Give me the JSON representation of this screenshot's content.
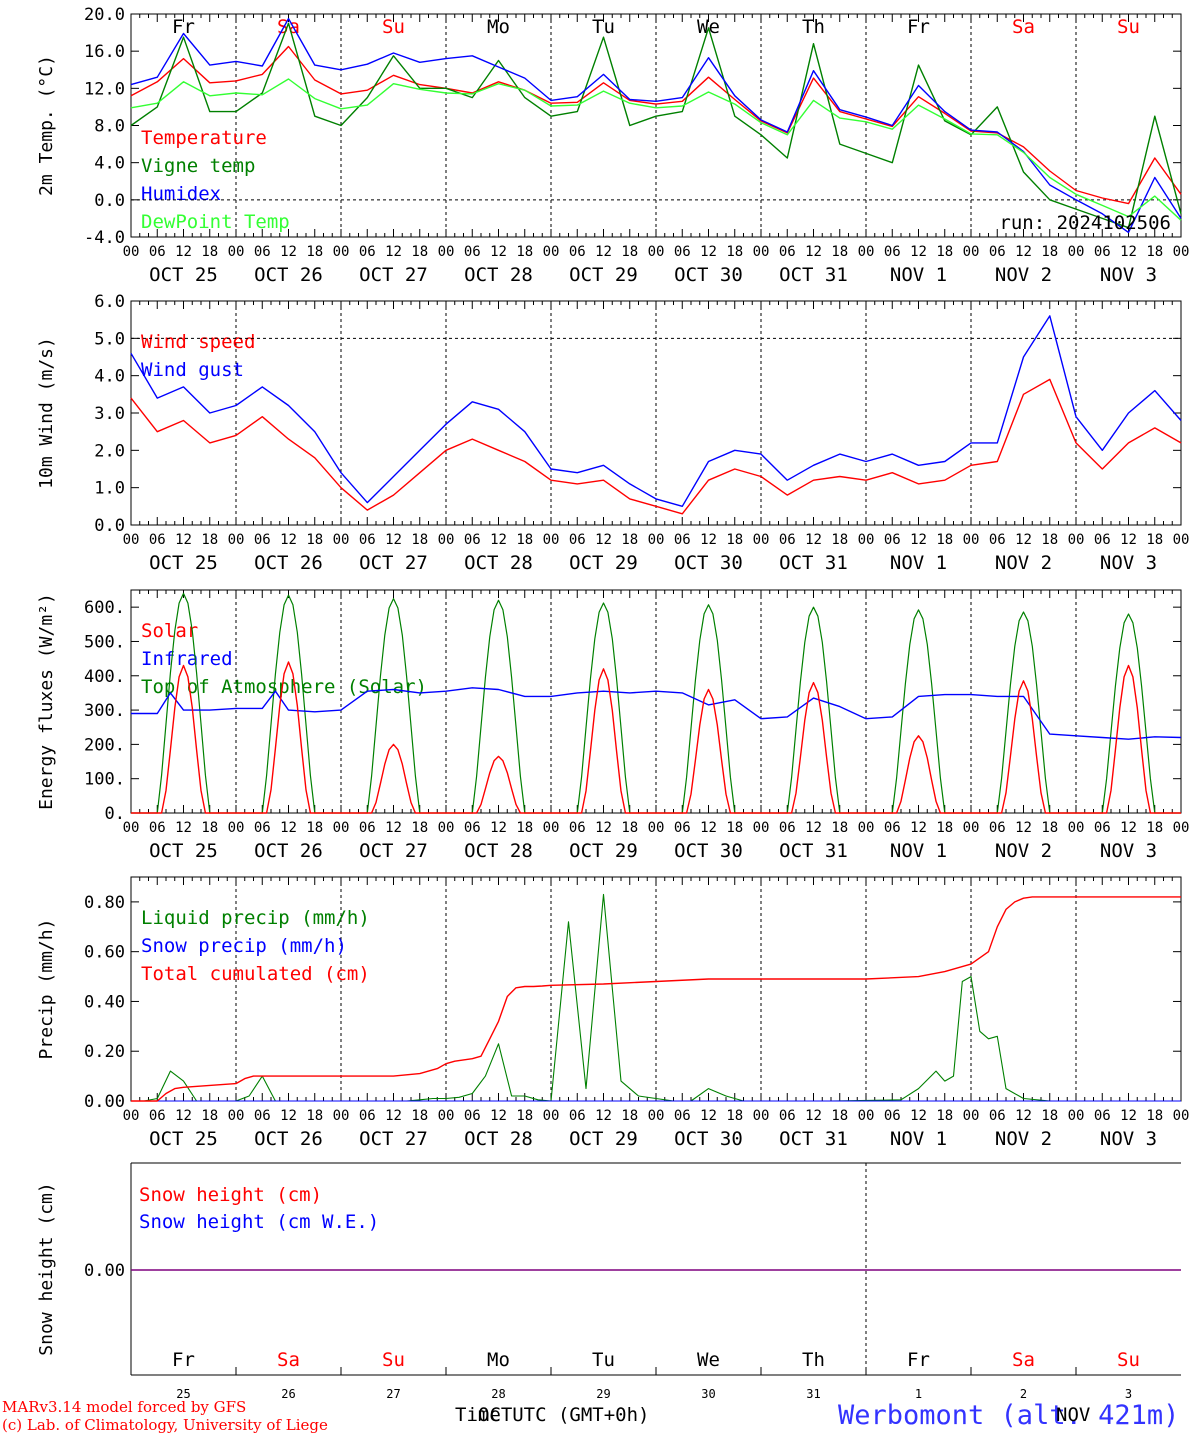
{
  "footer": {
    "credit_line1": "MARv3.14 model forced by GFS",
    "credit_line2": "(c) Lab. of Climatology, University of Liege",
    "axis_title": "Time UTC (GMT+0h)",
    "axis_overlap": "OCT",
    "axis_overlap2": "NOV",
    "station": "Werbomont (alt. 421m)"
  },
  "colors": {
    "red": "#ff0000",
    "green": "#008000",
    "blue": "#0000ff",
    "lightgreen": "#33ff33",
    "purple": "#7f007f",
    "station": "#3333ff"
  },
  "days": [
    {
      "name": "Fr",
      "weekend": false,
      "label": "OCT 25",
      "num": "25"
    },
    {
      "name": "Sa",
      "weekend": true,
      "label": "OCT 26",
      "num": "26"
    },
    {
      "name": "Su",
      "weekend": true,
      "label": "OCT 27",
      "num": "27"
    },
    {
      "name": "Mo",
      "weekend": false,
      "label": "OCT 28",
      "num": "28"
    },
    {
      "name": "Tu",
      "weekend": false,
      "label": "OCT 29",
      "num": "29"
    },
    {
      "name": "We",
      "weekend": false,
      "label": "OCT 30",
      "num": "30"
    },
    {
      "name": "Th",
      "weekend": false,
      "label": "OCT 31",
      "num": "31"
    },
    {
      "name": "Fr",
      "weekend": false,
      "label": "NOV  1",
      "num": "1"
    },
    {
      "name": "Sa",
      "weekend": true,
      "label": "NOV  2",
      "num": "2"
    },
    {
      "name": "Su",
      "weekend": true,
      "label": "NOV  3",
      "num": "3"
    }
  ],
  "hour_ticks": [
    "00",
    "06",
    "12",
    "18"
  ],
  "chart_data": [
    {
      "type": "line",
      "ylabel": "2m Temp. (°C)",
      "ylim": [
        -4,
        20
      ],
      "yticks": [
        "-4.0",
        "0.0",
        "4.0",
        "8.0",
        "12.0",
        "16.0",
        "20.0"
      ],
      "run_label": "run: 2024102506",
      "legend": [
        {
          "text": "Temperature",
          "color": "#ff0000"
        },
        {
          "text": "Vigne temp",
          "color": "#008000"
        },
        {
          "text": "Humidex",
          "color": "#0000ff"
        },
        {
          "text": "DewPoint Temp",
          "color": "#33ff33"
        }
      ],
      "x_hours": [
        0,
        6,
        12,
        18,
        24,
        30,
        36,
        42,
        48,
        54,
        60,
        66,
        72,
        78,
        84,
        90,
        96,
        102,
        108,
        114,
        120,
        126,
        132,
        138,
        144,
        150,
        156,
        162,
        168,
        174,
        180,
        186,
        192,
        198,
        204,
        210,
        216,
        222,
        228,
        234,
        240
      ],
      "series": [
        {
          "name": "Temperature",
          "color": "#ff0000",
          "values": [
            11.2,
            12.7,
            15.2,
            12.6,
            12.8,
            13.5,
            16.5,
            12.9,
            11.4,
            11.8,
            13.4,
            12.4,
            12.0,
            11.5,
            12.7,
            11.8,
            10.4,
            10.5,
            12.6,
            10.7,
            10.3,
            10.6,
            13.2,
            10.8,
            8.5,
            7.2,
            13.1,
            9.5,
            8.7,
            7.9,
            11.1,
            9.3,
            7.4,
            7.2,
            5.7,
            3.1,
            1.0,
            0.2,
            -0.4,
            4.5,
            0.6
          ]
        },
        {
          "name": "Vigne temp",
          "color": "#008000",
          "values": [
            8.0,
            10.0,
            17.5,
            9.5,
            9.5,
            11.5,
            19.0,
            9.0,
            8.0,
            11.0,
            15.5,
            12.0,
            12.0,
            11.0,
            15.0,
            11.0,
            9.0,
            9.5,
            17.5,
            8.0,
            9.0,
            9.5,
            18.5,
            9.0,
            7.0,
            4.5,
            16.8,
            6.0,
            5.0,
            4.0,
            14.5,
            8.5,
            7.0,
            10.0,
            3.0,
            0.0,
            -1.0,
            -2.0,
            -3.0,
            9.0,
            -1.5
          ]
        },
        {
          "name": "Humidex",
          "color": "#0000ff",
          "values": [
            12.4,
            13.2,
            17.9,
            14.5,
            14.9,
            14.4,
            19.5,
            14.5,
            14.0,
            14.6,
            15.8,
            14.8,
            15.2,
            15.5,
            14.3,
            13.1,
            10.7,
            11.1,
            13.5,
            10.8,
            10.6,
            11.0,
            15.3,
            11.2,
            8.6,
            7.3,
            13.9,
            9.7,
            8.9,
            8.0,
            12.3,
            9.5,
            7.5,
            7.3,
            5.2,
            1.6,
            0.0,
            -1.5,
            -3.5,
            2.4,
            -2.0
          ]
        },
        {
          "name": "DewPoint Temp",
          "color": "#33ff33",
          "values": [
            9.9,
            10.4,
            12.7,
            11.2,
            11.5,
            11.3,
            13.0,
            10.9,
            9.8,
            10.2,
            12.5,
            11.9,
            11.5,
            11.4,
            12.5,
            11.8,
            10.1,
            10.2,
            11.7,
            10.4,
            9.9,
            10.1,
            11.6,
            10.3,
            8.3,
            7.0,
            10.7,
            8.8,
            8.4,
            7.6,
            10.2,
            8.7,
            7.1,
            7.0,
            5.1,
            2.4,
            0.6,
            -0.6,
            -1.8,
            0.4,
            -2.2
          ]
        }
      ]
    },
    {
      "type": "line",
      "ylabel": "10m Wind (m/s)",
      "ylim": [
        0,
        6
      ],
      "yticks": [
        "0.0",
        "1.0",
        "2.0",
        "3.0",
        "4.0",
        "5.0",
        "6.0"
      ],
      "legend": [
        {
          "text": "Wind speed",
          "color": "#ff0000"
        },
        {
          "text": "Wind gust",
          "color": "#0000ff"
        }
      ],
      "x_hours": [
        0,
        6,
        12,
        18,
        24,
        30,
        36,
        42,
        48,
        54,
        60,
        66,
        72,
        78,
        84,
        90,
        96,
        102,
        108,
        114,
        120,
        126,
        132,
        138,
        144,
        150,
        156,
        162,
        168,
        174,
        180,
        186,
        192,
        198,
        204,
        210,
        216,
        222,
        228,
        234,
        240
      ],
      "series": [
        {
          "name": "Wind speed",
          "color": "#ff0000",
          "values": [
            3.4,
            2.5,
            2.8,
            2.2,
            2.4,
            2.9,
            2.3,
            1.8,
            1.0,
            0.4,
            0.8,
            1.4,
            2.0,
            2.3,
            2.0,
            1.7,
            1.2,
            1.1,
            1.2,
            0.7,
            0.5,
            0.3,
            1.2,
            1.5,
            1.3,
            0.8,
            1.2,
            1.3,
            1.2,
            1.4,
            1.1,
            1.2,
            1.6,
            1.7,
            3.5,
            3.9,
            2.2,
            1.5,
            2.2,
            2.6,
            2.2
          ]
        },
        {
          "name": "Wind gust",
          "color": "#0000ff",
          "values": [
            4.6,
            3.4,
            3.7,
            3.0,
            3.2,
            3.7,
            3.2,
            2.5,
            1.4,
            0.6,
            1.3,
            2.0,
            2.7,
            3.3,
            3.1,
            2.5,
            1.5,
            1.4,
            1.6,
            1.1,
            0.7,
            0.5,
            1.7,
            2.0,
            1.9,
            1.2,
            1.6,
            1.9,
            1.7,
            1.9,
            1.6,
            1.7,
            2.2,
            2.2,
            4.5,
            5.6,
            2.9,
            2.0,
            3.0,
            3.6,
            2.8
          ]
        }
      ]
    },
    {
      "type": "line",
      "ylabel": "Energy fluxes (W/m²)",
      "ylim": [
        0,
        650
      ],
      "yticks": [
        "0.",
        "100.",
        "200.",
        "300.",
        "400.",
        "500.",
        "600."
      ],
      "legend": [
        {
          "text": "Solar",
          "color": "#ff0000"
        },
        {
          "text": "Infrared",
          "color": "#0000ff"
        },
        {
          "text": "Top of Atmosphere (Solar)",
          "color": "#008000"
        }
      ],
      "daily_peak_toa": [
        640,
        635,
        625,
        620,
        612,
        607,
        600,
        592,
        586,
        580
      ],
      "daily_peak_solar": [
        430,
        440,
        200,
        165,
        420,
        360,
        380,
        225,
        385,
        430
      ],
      "infrared": {
        "x_hours": [
          0,
          6,
          9,
          12,
          18,
          24,
          30,
          33,
          36,
          42,
          48,
          54,
          60,
          66,
          72,
          78,
          84,
          90,
          96,
          102,
          108,
          114,
          120,
          126,
          132,
          138,
          144,
          150,
          156,
          162,
          168,
          174,
          180,
          186,
          192,
          198,
          204,
          210,
          216,
          222,
          228,
          234,
          240
        ],
        "values": [
          290,
          290,
          350,
          300,
          300,
          305,
          305,
          355,
          300,
          295,
          300,
          355,
          360,
          350,
          355,
          365,
          360,
          340,
          340,
          350,
          355,
          350,
          355,
          350,
          315,
          330,
          275,
          280,
          335,
          310,
          275,
          280,
          340,
          345,
          345,
          340,
          340,
          230,
          225,
          220,
          215,
          222,
          220
        ]
      }
    },
    {
      "type": "line",
      "ylabel": "Precip (mm/h)",
      "ylim": [
        0,
        0.9
      ],
      "yticks": [
        "0.00",
        "0.20",
        "0.40",
        "0.60",
        "0.80"
      ],
      "legend": [
        {
          "text": "Liquid precip (mm/h)",
          "color": "#008000"
        },
        {
          "text": "Snow precip (mm/h)",
          "color": "#0000ff"
        },
        {
          "text": "Total cumulated (cm)",
          "color": "#ff0000"
        }
      ],
      "liquid": {
        "x_hours": [
          0,
          3,
          6,
          9,
          12,
          15,
          18,
          21,
          24,
          27,
          30,
          33,
          36,
          39,
          42,
          45,
          48,
          51,
          54,
          57,
          60,
          63,
          66,
          69,
          72,
          75,
          78,
          81,
          84,
          87,
          90,
          93,
          96,
          100,
          104,
          108,
          112,
          116,
          120,
          124,
          128,
          132,
          136,
          140,
          144,
          160,
          176,
          180,
          184,
          186,
          188,
          190,
          192,
          194,
          196,
          198,
          200,
          204,
          210,
          216,
          240
        ],
        "values": [
          0,
          0,
          0.01,
          0.12,
          0.08,
          0,
          0,
          0,
          0,
          0.02,
          0.1,
          0,
          0,
          0,
          0,
          0,
          0,
          0,
          0,
          0,
          0,
          0,
          0.005,
          0.01,
          0.01,
          0.015,
          0.03,
          0.1,
          0.23,
          0.02,
          0.02,
          0.005,
          0,
          0.72,
          0.05,
          0.83,
          0.08,
          0.02,
          0.01,
          0,
          0,
          0.05,
          0.02,
          0,
          0,
          0,
          0.005,
          0.05,
          0.12,
          0.08,
          0.1,
          0.48,
          0.5,
          0.28,
          0.25,
          0.26,
          0.05,
          0.01,
          0,
          0,
          0
        ]
      },
      "cumulated": {
        "x_hours": [
          0,
          6,
          8,
          10,
          12,
          24,
          26,
          28,
          30,
          36,
          48,
          60,
          66,
          70,
          72,
          74,
          76,
          78,
          80,
          82,
          84,
          86,
          88,
          90,
          92,
          94,
          96,
          108,
          120,
          132,
          144,
          156,
          168,
          180,
          186,
          192,
          196,
          198,
          200,
          202,
          204,
          206,
          208,
          216,
          228,
          240
        ],
        "values": [
          0,
          0,
          0.03,
          0.05,
          0.055,
          0.07,
          0.09,
          0.1,
          0.1,
          0.1,
          0.1,
          0.1,
          0.11,
          0.13,
          0.15,
          0.16,
          0.165,
          0.17,
          0.18,
          0.25,
          0.32,
          0.42,
          0.455,
          0.46,
          0.46,
          0.462,
          0.465,
          0.47,
          0.48,
          0.49,
          0.49,
          0.49,
          0.49,
          0.5,
          0.52,
          0.55,
          0.6,
          0.7,
          0.77,
          0.8,
          0.815,
          0.82,
          0.82,
          0.82,
          0.82,
          0.82
        ]
      }
    },
    {
      "type": "line",
      "ylabel": "Snow height (cm)",
      "yticks": [
        "0.00"
      ],
      "legend": [
        {
          "text": "Snow height (cm)",
          "color": "#ff0000"
        },
        {
          "text": "Snow height (cm W.E.)",
          "color": "#0000ff"
        }
      ],
      "series": [
        {
          "name": "Snow height (cm)",
          "color": "#ff0000",
          "values": [
            0,
            0
          ]
        },
        {
          "name": "Snow height (cm W.E.)",
          "color": "#0000ff",
          "values": [
            0,
            0
          ]
        }
      ]
    }
  ]
}
